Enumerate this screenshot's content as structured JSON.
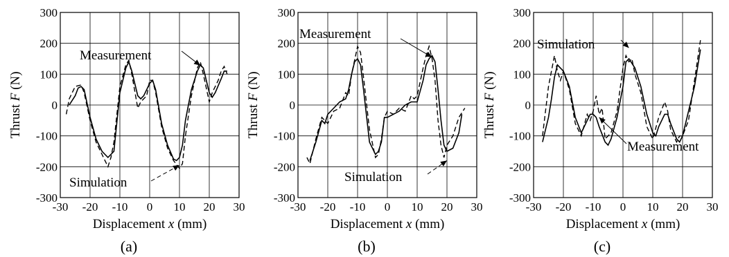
{
  "chart_data": [
    {
      "type": "line",
      "panel_label": "(a)",
      "xlabel": "Displacement x (mm)",
      "ylabel": "Thrust F (N)",
      "xlim": [
        -30,
        30
      ],
      "ylim": [
        -300,
        300
      ],
      "x_ticks": [
        "-30",
        "-20",
        "-10",
        "0",
        "10",
        "20",
        "30"
      ],
      "y_ticks": [
        "-300",
        "-200",
        "-100",
        "0",
        "100",
        "200",
        "300"
      ],
      "grid": true,
      "series": [
        {
          "name": "Measurement",
          "style": "solid",
          "x": [
            -27,
            -25,
            -24,
            -23,
            -22,
            -20,
            -18,
            -16,
            -15,
            -14,
            -12,
            -10,
            -8,
            -7,
            -6,
            -4,
            -3,
            -2,
            0,
            1,
            2,
            4,
            6,
            8,
            9,
            10,
            11,
            12,
            14,
            16,
            17,
            18,
            20,
            21,
            22,
            24,
            25,
            26
          ],
          "y": [
            0,
            30,
            55,
            60,
            50,
            -40,
            -110,
            -150,
            -160,
            -170,
            -150,
            40,
            120,
            140,
            110,
            30,
            20,
            30,
            70,
            80,
            50,
            -60,
            -130,
            -175,
            -180,
            -170,
            -130,
            -50,
            50,
            110,
            130,
            120,
            40,
            25,
            40,
            85,
            110,
            110
          ]
        },
        {
          "name": "Simulation",
          "style": "dashed",
          "x": [
            -28,
            -27,
            -25,
            -23,
            -22,
            -20,
            -18,
            -16,
            -14,
            -13,
            -12,
            -10,
            -8,
            -7,
            -6,
            -4,
            -3,
            -1,
            0,
            1,
            2,
            4,
            6,
            8,
            10,
            11,
            12,
            14,
            16,
            17,
            18,
            20,
            21,
            23,
            24,
            25,
            26
          ],
          "y": [
            -30,
            20,
            60,
            65,
            40,
            -50,
            -120,
            -160,
            -200,
            -170,
            -120,
            60,
            130,
            145,
            100,
            -10,
            10,
            30,
            80,
            80,
            40,
            -70,
            -140,
            -180,
            -205,
            -190,
            -100,
            30,
            120,
            140,
            100,
            10,
            40,
            80,
            110,
            125,
            100
          ]
        }
      ],
      "annotations": [
        "Measurement",
        "Simulation"
      ]
    },
    {
      "type": "line",
      "panel_label": "(b)",
      "xlabel": "Displacement x (mm)",
      "ylabel": "Thrust F (N)",
      "xlim": [
        -30,
        30
      ],
      "ylim": [
        -300,
        300
      ],
      "x_ticks": [
        "-30",
        "-20",
        "-10",
        "0",
        "10",
        "20",
        "30"
      ],
      "y_ticks": [
        "-300",
        "-200",
        "-100",
        "0",
        "100",
        "200",
        "300"
      ],
      "grid": true,
      "series": [
        {
          "name": "Measurement",
          "style": "solid",
          "x": [
            -26,
            -24,
            -22,
            -21,
            -20,
            -18,
            -16,
            -14,
            -13,
            -12,
            -11,
            -10,
            -9,
            -8,
            -6,
            -4,
            -3,
            -2,
            -1,
            0,
            2,
            4,
            6,
            8,
            10,
            12,
            13,
            14,
            15,
            16,
            17,
            18,
            19,
            20,
            22,
            24,
            25
          ],
          "y": [
            -180,
            -120,
            -50,
            -60,
            -30,
            -10,
            10,
            20,
            50,
            100,
            140,
            150,
            130,
            50,
            -120,
            -160,
            -150,
            -120,
            -40,
            -40,
            -30,
            -20,
            0,
            10,
            10,
            80,
            130,
            150,
            160,
            140,
            50,
            -50,
            -130,
            -150,
            -140,
            -90,
            -30
          ]
        },
        {
          "name": "Simulation",
          "style": "dashed",
          "x": [
            -27,
            -26,
            -24,
            -22,
            -20,
            -18,
            -16,
            -14,
            -13,
            -12,
            -10,
            -9,
            -8,
            -6,
            -4,
            -3,
            -2,
            -1,
            0,
            2,
            4,
            6,
            8,
            9,
            10,
            12,
            13,
            14,
            15,
            16,
            17,
            18,
            19,
            20,
            22,
            24,
            26
          ],
          "y": [
            -170,
            -190,
            -110,
            -40,
            -60,
            -20,
            -10,
            40,
            30,
            100,
            190,
            170,
            90,
            -80,
            -170,
            -160,
            -110,
            -40,
            -20,
            -30,
            -10,
            -20,
            30,
            20,
            30,
            120,
            160,
            190,
            150,
            80,
            -50,
            -130,
            -170,
            -130,
            -100,
            -40,
            -10
          ]
        }
      ],
      "annotations": [
        "Measurement",
        "Simulation"
      ]
    },
    {
      "type": "line",
      "panel_label": "(c)",
      "xlabel": "Displacement x (mm)",
      "ylabel": "Thrust F (N)",
      "xlim": [
        -30,
        30
      ],
      "ylim": [
        -300,
        300
      ],
      "x_ticks": [
        "-30",
        "-20",
        "-10",
        "0",
        "10",
        "20",
        "30"
      ],
      "y_ticks": [
        "-300",
        "-200",
        "-100",
        "0",
        "100",
        "200",
        "300"
      ],
      "grid": true,
      "series": [
        {
          "name": "Measurement",
          "style": "solid",
          "x": [
            -27,
            -25,
            -24,
            -23,
            -22,
            -20,
            -18,
            -16,
            -14,
            -12,
            -11,
            -10,
            -9,
            -8,
            -6,
            -5,
            -4,
            -2,
            0,
            1,
            2,
            4,
            6,
            8,
            10,
            11,
            12,
            14,
            15,
            16,
            18,
            19,
            20,
            22,
            24,
            26
          ],
          "y": [
            -120,
            -40,
            20,
            90,
            130,
            110,
            60,
            -40,
            -90,
            -50,
            -30,
            -30,
            -40,
            -70,
            -120,
            -130,
            -110,
            -40,
            60,
            140,
            150,
            120,
            60,
            -30,
            -90,
            -100,
            -70,
            -30,
            -30,
            -60,
            -110,
            -120,
            -100,
            -20,
            60,
            180
          ]
        },
        {
          "name": "Simulation",
          "style": "dashed",
          "x": [
            -27,
            -25,
            -23,
            -22,
            -21,
            -20,
            -18,
            -16,
            -14,
            -12,
            -11,
            -10,
            -9,
            -8,
            -7,
            -6,
            -4,
            -2,
            0,
            1,
            2,
            3,
            4,
            6,
            8,
            10,
            12,
            14,
            15,
            16,
            18,
            19,
            20,
            22,
            24,
            26
          ],
          "y": [
            -100,
            60,
            160,
            110,
            80,
            110,
            50,
            -60,
            -100,
            -30,
            -50,
            -20,
            30,
            -30,
            -10,
            -110,
            -90,
            -20,
            120,
            160,
            140,
            150,
            100,
            40,
            -70,
            -110,
            -40,
            10,
            -20,
            -80,
            -120,
            -100,
            -100,
            -50,
            80,
            210
          ]
        }
      ],
      "annotations": [
        "Simulation",
        "Measurement"
      ]
    }
  ]
}
